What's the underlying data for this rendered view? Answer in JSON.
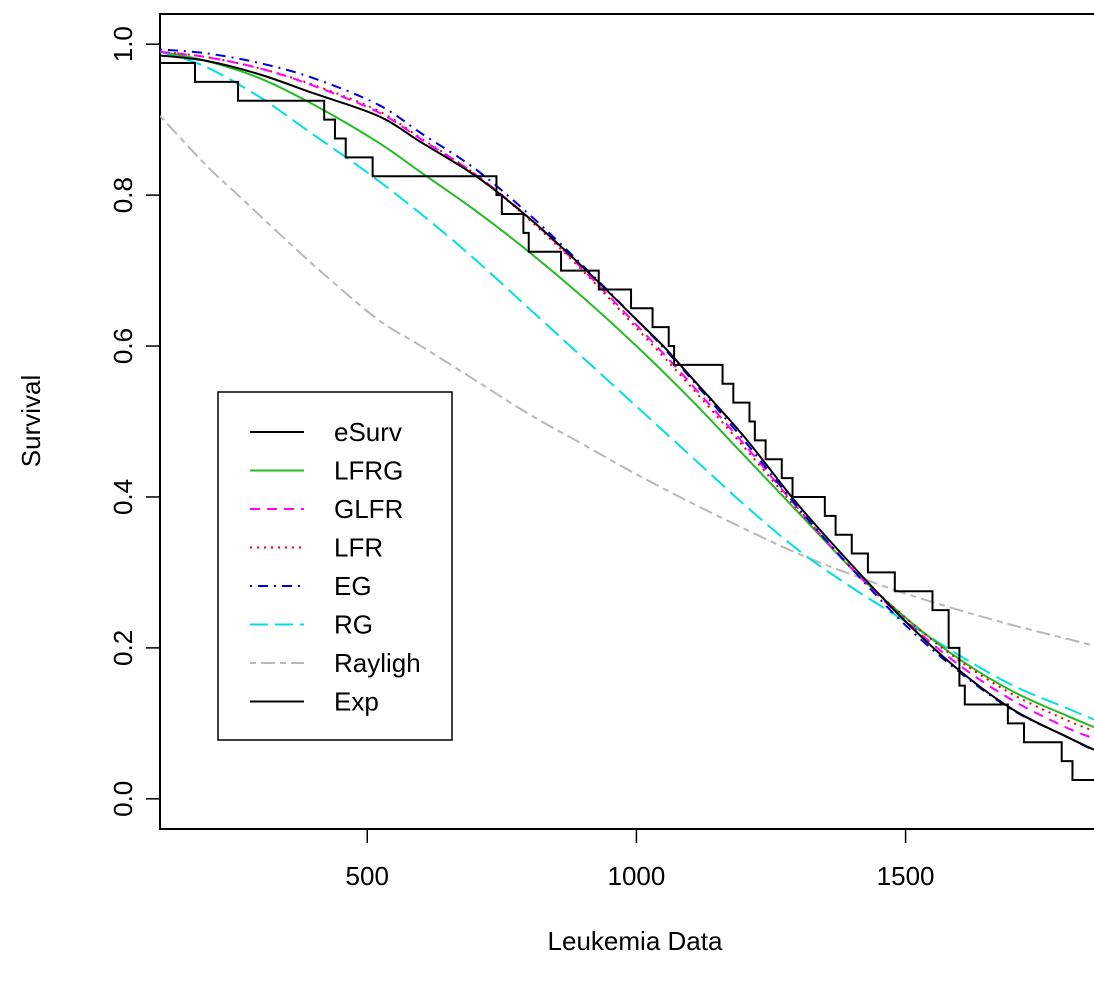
{
  "chart_data": {
    "type": "line",
    "title": "",
    "xlabel": "Leukemia Data",
    "ylabel": "Survival",
    "xlim": [
      115,
      1850
    ],
    "ylim": [
      -0.04,
      1.04
    ],
    "xticks": [
      500,
      1000,
      1500
    ],
    "xtick_labels": [
      "500",
      "1000",
      "1500"
    ],
    "yticks": [
      0.0,
      0.2,
      0.4,
      0.6,
      0.8,
      1.0
    ],
    "ytick_labels": [
      "0.0",
      "0.2",
      "0.4",
      "0.6",
      "0.8",
      "1.0"
    ],
    "grid": false,
    "legend_position": "center-left",
    "colors": {
      "eSurv": "#000000",
      "LFRG": "#22bb22",
      "GLFR": "#ff00ff",
      "LFR": "#ee0000",
      "EG": "#0000dd",
      "RG": "#00e0e0",
      "Rayligh": "#b8b8b8",
      "Exp": "#000000"
    },
    "legend": [
      {
        "name": "eSurv",
        "dash": "solid"
      },
      {
        "name": "LFRG",
        "dash": "solid"
      },
      {
        "name": "GLFR",
        "dash": "dashed"
      },
      {
        "name": "LFR",
        "dash": "dotted"
      },
      {
        "name": "EG",
        "dash": "dotdash"
      },
      {
        "name": "RG",
        "dash": "longdash"
      },
      {
        "name": "Rayligh",
        "dash": "twodash"
      },
      {
        "name": "Exp",
        "dash": "solid"
      }
    ],
    "esurv_step": [
      [
        115,
        0.975
      ],
      [
        180,
        0.95
      ],
      [
        260,
        0.925
      ],
      [
        420,
        0.9
      ],
      [
        440,
        0.875
      ],
      [
        460,
        0.85
      ],
      [
        510,
        0.825
      ],
      [
        740,
        0.8
      ],
      [
        750,
        0.775
      ],
      [
        790,
        0.75
      ],
      [
        800,
        0.725
      ],
      [
        860,
        0.7
      ],
      [
        930,
        0.675
      ],
      [
        990,
        0.65
      ],
      [
        1030,
        0.625
      ],
      [
        1060,
        0.6
      ],
      [
        1070,
        0.575
      ],
      [
        1160,
        0.55
      ],
      [
        1180,
        0.525
      ],
      [
        1210,
        0.5
      ],
      [
        1220,
        0.475
      ],
      [
        1240,
        0.45
      ],
      [
        1270,
        0.425
      ],
      [
        1290,
        0.4
      ],
      [
        1350,
        0.375
      ],
      [
        1370,
        0.35
      ],
      [
        1400,
        0.325
      ],
      [
        1430,
        0.3
      ],
      [
        1480,
        0.275
      ],
      [
        1550,
        0.25
      ],
      [
        1580,
        0.2
      ],
      [
        1600,
        0.15
      ],
      [
        1610,
        0.125
      ],
      [
        1690,
        0.1
      ],
      [
        1720,
        0.075
      ],
      [
        1790,
        0.05
      ],
      [
        1810,
        0.025
      ],
      [
        1850,
        0.025
      ]
    ],
    "series": [
      {
        "name": "Exp",
        "x": [
          115,
          200,
          300,
          400,
          520,
          600,
          700,
          800,
          900,
          1000,
          1050,
          1100,
          1200,
          1300,
          1400,
          1500,
          1600,
          1700,
          1800,
          1850
        ],
        "values": [
          0.985,
          0.978,
          0.96,
          0.935,
          0.905,
          0.87,
          0.826,
          0.77,
          0.705,
          0.635,
          0.6,
          0.56,
          0.48,
          0.39,
          0.31,
          0.235,
          0.17,
          0.118,
          0.082,
          0.065
        ]
      },
      {
        "name": "EG",
        "x": [
          115,
          200,
          300,
          400,
          520,
          600,
          700,
          800,
          900,
          1000,
          1050,
          1100,
          1200,
          1300,
          1400,
          1500,
          1600,
          1700,
          1800,
          1850
        ],
        "values": [
          0.993,
          0.988,
          0.975,
          0.955,
          0.92,
          0.882,
          0.835,
          0.775,
          0.707,
          0.635,
          0.598,
          0.558,
          0.475,
          0.386,
          0.305,
          0.23,
          0.168,
          0.117,
          0.082,
          0.064
        ]
      },
      {
        "name": "GLFR",
        "x": [
          115,
          200,
          300,
          400,
          520,
          600,
          700,
          800,
          900,
          1000,
          1050,
          1100,
          1200,
          1300,
          1400,
          1500,
          1600,
          1700,
          1800,
          1850
        ],
        "values": [
          0.99,
          0.983,
          0.968,
          0.945,
          0.91,
          0.874,
          0.828,
          0.77,
          0.702,
          0.628,
          0.59,
          0.551,
          0.47,
          0.385,
          0.305,
          0.236,
          0.177,
          0.13,
          0.094,
          0.08
        ]
      },
      {
        "name": "LFR",
        "x": [
          115,
          200,
          300,
          400,
          520,
          600,
          700,
          800,
          900,
          1000,
          1050,
          1100,
          1200,
          1300,
          1400,
          1500,
          1600,
          1700,
          1800,
          1850
        ],
        "values": [
          0.99,
          0.983,
          0.968,
          0.946,
          0.912,
          0.875,
          0.828,
          0.768,
          0.7,
          0.624,
          0.586,
          0.547,
          0.466,
          0.383,
          0.306,
          0.24,
          0.183,
          0.138,
          0.104,
          0.09
        ]
      },
      {
        "name": "LFRG",
        "x": [
          115,
          200,
          300,
          400,
          520,
          600,
          700,
          800,
          900,
          1000,
          1100,
          1200,
          1300,
          1400,
          1500,
          1600,
          1700,
          1800,
          1850
        ],
        "values": [
          0.99,
          0.978,
          0.955,
          0.92,
          0.87,
          0.83,
          0.78,
          0.725,
          0.665,
          0.6,
          0.53,
          0.455,
          0.38,
          0.305,
          0.24,
          0.185,
          0.142,
          0.11,
          0.095
        ]
      },
      {
        "name": "RG",
        "x": [
          115,
          200,
          300,
          400,
          500,
          600,
          700,
          800,
          900,
          1000,
          1100,
          1200,
          1300,
          1400,
          1500,
          1600,
          1700,
          1800,
          1850
        ],
        "values": [
          0.99,
          0.97,
          0.93,
          0.88,
          0.83,
          0.775,
          0.715,
          0.65,
          0.585,
          0.52,
          0.455,
          0.39,
          0.33,
          0.28,
          0.235,
          0.19,
          0.15,
          0.12,
          0.105
        ]
      },
      {
        "name": "Rayligh",
        "x": [
          115,
          200,
          260,
          350,
          420,
          520,
          600,
          700,
          800,
          900,
          1000,
          1100,
          1200,
          1300,
          1400,
          1500,
          1600,
          1700,
          1800,
          1850
        ],
        "values": [
          0.905,
          0.84,
          0.8,
          0.74,
          0.695,
          0.635,
          0.6,
          0.555,
          0.51,
          0.47,
          0.43,
          0.393,
          0.358,
          0.325,
          0.297,
          0.272,
          0.25,
          0.23,
          0.212,
          0.203
        ]
      }
    ]
  }
}
